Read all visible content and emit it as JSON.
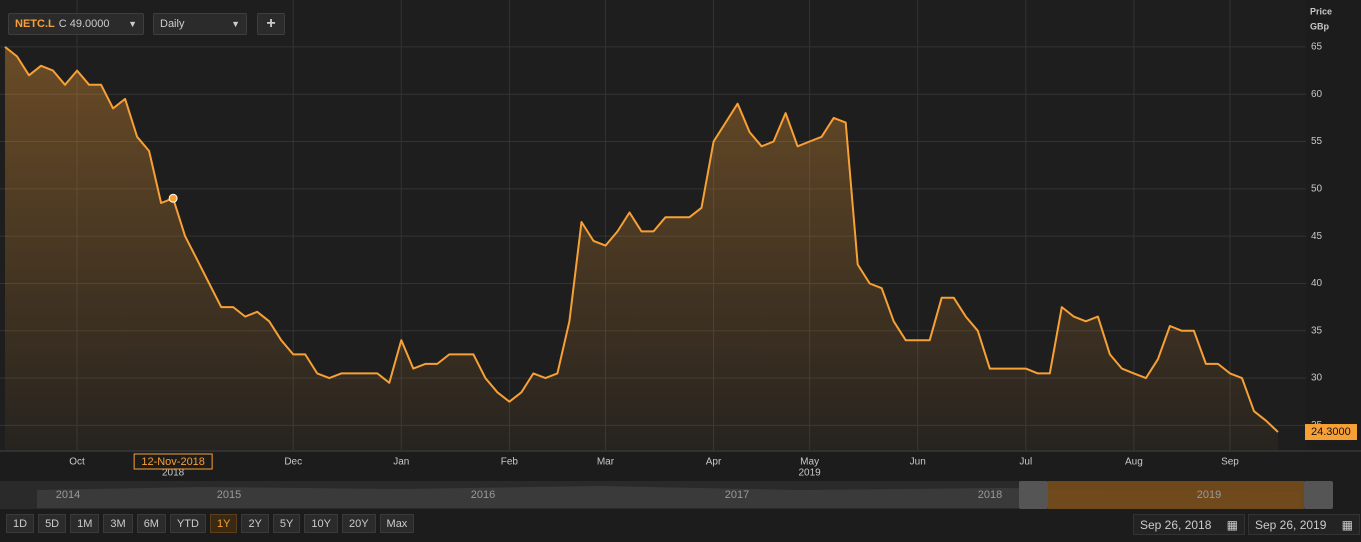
{
  "toolbar": {
    "ticker": "NETC.L",
    "quote": "C 49.0000",
    "interval": "Daily",
    "add": "+"
  },
  "chart_data": {
    "type": "line",
    "y_axis_label": [
      "Price",
      "GBp"
    ],
    "crosshair_label": "12-Nov-2018",
    "categories": [
      null,
      null,
      null,
      null,
      null,
      null,
      "Oct",
      null,
      null,
      null,
      null,
      null,
      null,
      null,
      null,
      null,
      null,
      null,
      null,
      null,
      null,
      null,
      null,
      null,
      "Dec",
      null,
      null,
      null,
      null,
      null,
      null,
      null,
      null,
      "Jan",
      null,
      null,
      null,
      null,
      null,
      null,
      null,
      null,
      "Feb",
      null,
      null,
      null,
      null,
      null,
      null,
      null,
      "Mar",
      null,
      null,
      null,
      null,
      null,
      null,
      null,
      null,
      "Apr",
      null,
      null,
      null,
      null,
      null,
      null,
      null,
      "May",
      null,
      null,
      null,
      null,
      null,
      null,
      null,
      null,
      "Jun",
      null,
      null,
      null,
      null,
      null,
      null,
      null,
      null,
      "Jul",
      null,
      null,
      null,
      null,
      null,
      null,
      null,
      null,
      "Aug",
      null,
      null,
      null,
      null,
      null,
      null,
      null,
      "Sep",
      null,
      null,
      null,
      null
    ],
    "x_years": [
      null,
      null,
      null,
      null,
      null,
      null,
      null,
      null,
      null,
      null,
      null,
      null,
      null,
      null,
      "2018",
      null,
      null,
      null,
      null,
      null,
      null,
      null,
      null,
      null,
      null,
      null,
      null,
      null,
      null,
      null,
      null,
      null,
      null,
      null,
      null,
      null,
      null,
      null,
      null,
      null,
      null,
      null,
      null,
      null,
      null,
      null,
      null,
      null,
      null,
      null,
      null,
      null,
      null,
      null,
      null,
      null,
      null,
      null,
      null,
      null,
      null,
      null,
      null,
      null,
      null,
      null,
      null,
      "2019",
      null,
      null,
      null,
      null,
      null,
      null,
      null,
      null,
      null,
      null,
      null,
      null,
      null,
      null,
      null,
      null,
      null,
      null,
      null,
      null,
      null,
      null,
      null,
      null,
      null,
      null,
      null,
      null,
      null,
      null,
      null,
      null,
      null,
      null,
      null,
      null,
      null,
      null,
      null
    ],
    "series": [
      {
        "name": "NETC.L",
        "color": "#f7a035",
        "values": [
          65,
          64,
          62,
          63,
          62.5,
          61,
          62.5,
          61,
          61,
          58.5,
          59.5,
          55.5,
          54,
          48.5,
          49,
          45,
          42.5,
          40,
          37.5,
          37.5,
          36.5,
          37,
          36,
          34,
          32.5,
          32.5,
          30.5,
          30,
          30.5,
          30.5,
          30.5,
          30.5,
          29.5,
          34,
          31,
          31.5,
          31.5,
          32.5,
          32.5,
          32.5,
          30,
          28.5,
          27.5,
          28.5,
          30.5,
          30,
          30.5,
          36,
          46.5,
          44.5,
          44,
          45.5,
          47.5,
          45.5,
          45.5,
          47,
          47,
          47,
          48,
          55,
          57,
          59,
          56,
          54.5,
          55,
          58,
          54.5,
          55,
          55.5,
          57.5,
          57,
          42,
          40,
          39.5,
          36,
          34,
          34,
          34,
          38.5,
          38.5,
          36.5,
          35,
          31,
          31,
          31,
          31,
          30.5,
          30.5,
          37.5,
          36.5,
          36,
          36.5,
          32.5,
          31,
          30.5,
          30,
          32,
          35.5,
          35,
          35,
          31.5,
          31.5,
          30.5,
          30,
          26.5,
          25.5,
          24.3
        ],
        "value_labels": [
          null,
          null,
          null,
          null,
          null,
          null,
          null,
          null,
          null,
          null,
          null,
          null,
          null,
          null,
          null,
          null,
          null,
          null,
          null,
          null,
          null,
          null,
          null,
          null,
          null,
          null,
          null,
          null,
          null,
          null,
          null,
          null,
          null,
          null,
          null,
          null,
          null,
          null,
          null,
          null,
          null,
          null,
          null,
          null,
          null,
          null,
          null,
          null,
          null,
          null,
          null,
          null,
          null,
          null,
          null,
          null,
          null,
          null,
          null,
          null,
          null,
          null,
          null,
          null,
          null,
          null,
          null,
          null,
          null,
          null,
          null,
          null,
          null,
          null,
          null,
          null,
          null,
          null,
          null,
          null,
          null,
          null,
          null,
          null,
          null,
          null,
          null,
          null,
          null,
          null,
          null,
          null,
          null,
          null,
          null,
          null,
          null,
          null,
          null,
          null,
          null,
          null,
          null,
          null,
          null,
          null,
          "24.3000"
        ]
      }
    ],
    "ylim": [
      22.4,
      68.9
    ],
    "yticks": [
      25,
      30,
      35,
      40,
      45,
      50,
      55,
      60,
      65
    ],
    "grid": true
  },
  "navigator": {
    "years": [
      "2014",
      "2015",
      "2016",
      "2017",
      "2018",
      "2019"
    ]
  },
  "range_buttons": [
    "1D",
    "5D",
    "1M",
    "3M",
    "6M",
    "YTD",
    "1Y",
    "2Y",
    "5Y",
    "10Y",
    "20Y",
    "Max"
  ],
  "date_range": {
    "from": "Sep 26, 2018",
    "to": "Sep 26, 2019"
  }
}
